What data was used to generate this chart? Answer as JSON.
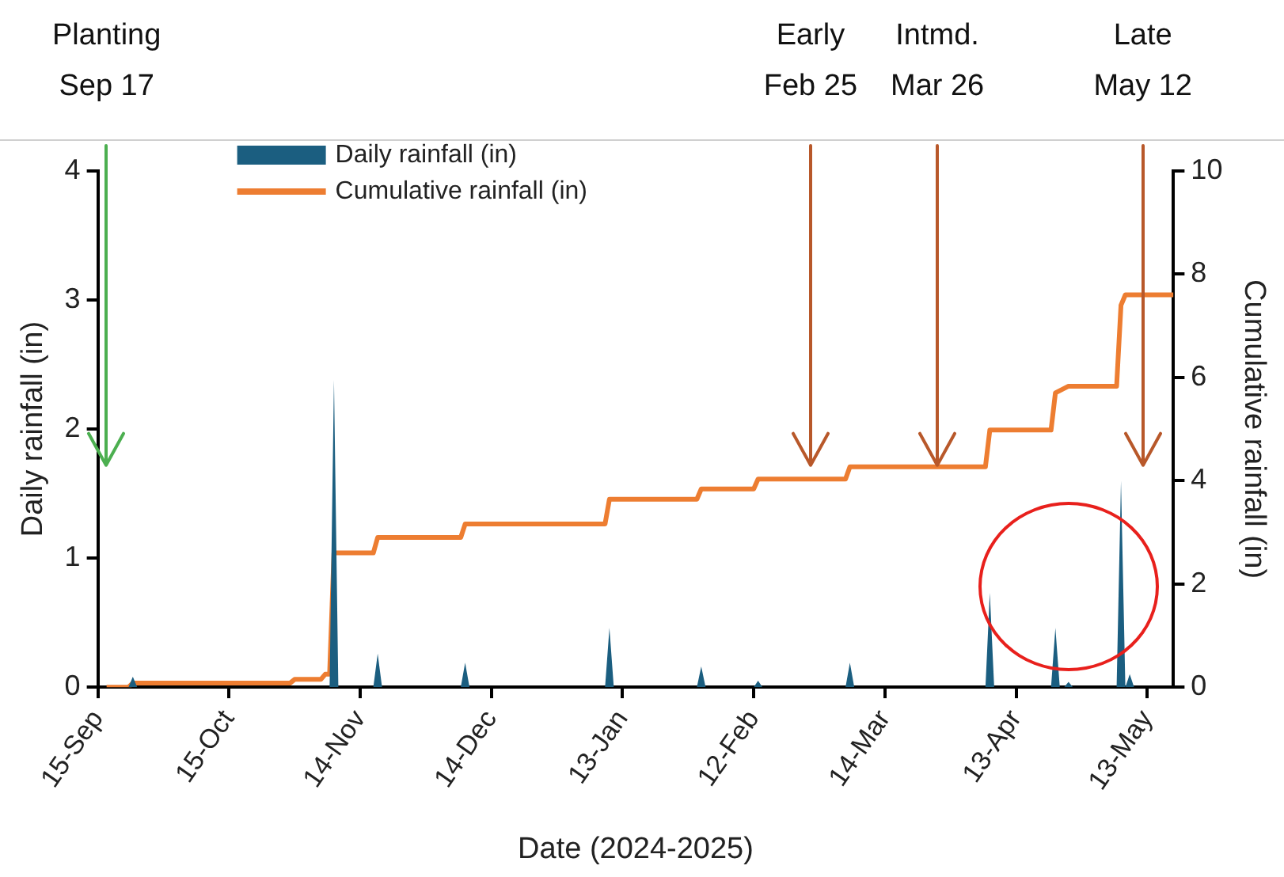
{
  "chart_data": {
    "type": "area",
    "xlabel": "Date (2024-2025)",
    "ylabel": "Daily rainfall (in)",
    "y2label": "Cumulative rainfall (in)",
    "xlim": [
      "2024-09-15",
      "2025-05-19"
    ],
    "xticks": [
      {
        "value": "2024-09-15",
        "label": "15-Sep"
      },
      {
        "value": "2024-10-15",
        "label": "15-Oct"
      },
      {
        "value": "2024-11-14",
        "label": "14-Nov"
      },
      {
        "value": "2024-12-14",
        "label": "14-Dec"
      },
      {
        "value": "2025-01-13",
        "label": "13-Jan"
      },
      {
        "value": "2025-02-12",
        "label": "12-Feb"
      },
      {
        "value": "2025-03-14",
        "label": "14-Mar"
      },
      {
        "value": "2025-04-13",
        "label": "13-Apr"
      },
      {
        "value": "2025-05-13",
        "label": "13-May"
      }
    ],
    "ylim": [
      0,
      4
    ],
    "yticks": [
      0,
      1,
      2,
      3,
      4
    ],
    "y2lim": [
      0,
      10
    ],
    "y2ticks": [
      0,
      2,
      4,
      6,
      8,
      10
    ],
    "grid": false,
    "legend": "top",
    "series": [
      {
        "name": "Daily rainfall (in)",
        "color": "#1b5e80",
        "x": [
          "2024-09-15",
          "2024-09-22",
          "2024-09-23",
          "2024-09-24",
          "2024-11-07",
          "2024-11-08",
          "2024-11-09",
          "2024-11-17",
          "2024-11-18",
          "2024-11-19",
          "2024-12-07",
          "2024-12-08",
          "2024-12-09",
          "2025-01-09",
          "2025-01-10",
          "2025-01-11",
          "2025-01-30",
          "2025-01-31",
          "2025-02-01",
          "2025-02-12",
          "2025-02-13",
          "2025-02-14",
          "2025-03-05",
          "2025-03-06",
          "2025-03-07",
          "2025-04-06",
          "2025-04-07",
          "2025-04-08",
          "2025-04-21",
          "2025-04-22",
          "2025-04-23",
          "2025-04-24",
          "2025-04-25",
          "2025-04-26",
          "2025-05-06",
          "2025-05-07",
          "2025-05-08",
          "2025-05-09",
          "2025-05-10",
          "2025-05-19"
        ],
        "values": [
          0,
          0,
          0.08,
          0,
          0,
          2.38,
          0,
          0,
          0.26,
          0,
          0,
          0.19,
          0,
          0,
          0.46,
          0,
          0,
          0.16,
          0,
          0,
          0.05,
          0,
          0,
          0.19,
          0,
          0,
          0.73,
          0,
          0,
          0.46,
          0,
          0,
          0.04,
          0,
          0,
          1.6,
          0,
          0.1,
          0,
          0
        ]
      },
      {
        "name": "Cumulative rainfall (in)",
        "type": "line",
        "axis": "y2",
        "color": "#ed7d31",
        "x": [
          "2024-09-17",
          "2024-09-22",
          "2024-09-23",
          "2024-10-29",
          "2024-10-30",
          "2024-11-05",
          "2024-11-06",
          "2024-11-07",
          "2024-11-08",
          "2024-11-17",
          "2024-11-18",
          "2024-12-07",
          "2024-12-08",
          "2025-01-09",
          "2025-01-10",
          "2025-01-30",
          "2025-01-31",
          "2025-02-12",
          "2025-02-13",
          "2025-03-05",
          "2025-03-06",
          "2025-04-06",
          "2025-04-07",
          "2025-04-21",
          "2025-04-22",
          "2025-04-25",
          "2025-05-06",
          "2025-05-07",
          "2025-05-08",
          "2025-05-19"
        ],
        "values": [
          0,
          0,
          0.08,
          0.08,
          0.15,
          0.15,
          0.25,
          0.25,
          2.6,
          2.6,
          2.9,
          2.9,
          3.16,
          3.16,
          3.64,
          3.64,
          3.84,
          3.84,
          4.03,
          4.03,
          4.27,
          4.27,
          4.98,
          4.98,
          5.7,
          5.83,
          5.83,
          7.4,
          7.6,
          7.6
        ]
      }
    ],
    "ref_lines": [
      {
        "axis": "x",
        "value": "2024-09-17",
        "label": "Planting\nSep 17",
        "color": "#4caf50"
      },
      {
        "axis": "x",
        "value": "2025-02-25",
        "label": "Early\nFeb 25",
        "color": "#b8582a"
      },
      {
        "axis": "x",
        "value": "2025-03-26",
        "label": "Intmd.\nMar 26",
        "color": "#b8582a"
      },
      {
        "axis": "x",
        "value": "2025-05-12",
        "label": "Late\nMay 12",
        "color": "#b8582a"
      }
    ]
  }
}
